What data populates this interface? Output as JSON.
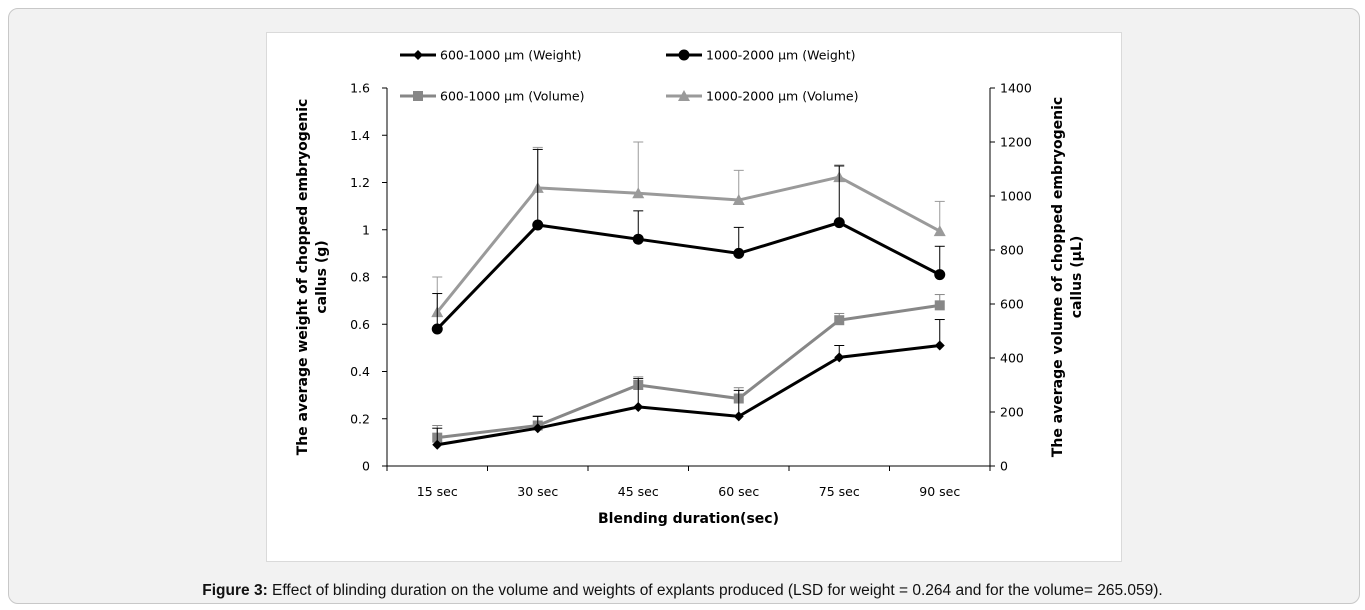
{
  "caption": {
    "label": "Figure 3:",
    "text": " Effect of blinding duration on the volume and weights of explants produced (LSD for weight = 0.264 and for the volume= 265.059)."
  },
  "chart_data": {
    "type": "line",
    "xlabel": "Blending duration(sec)",
    "ylabel_left": "The average weight of chopped embryogenic callus (g)",
    "ylabel_left_lines": [
      "The average weight of chopped embryogenic",
      "callus (g)"
    ],
    "ylabel_right": "The average volume of chopped embryogenic callus (µL)",
    "ylabel_right_lines": [
      "The average volume of chopped embryogenic",
      "callus (µL)"
    ],
    "categories": [
      "15 sec",
      "30 sec",
      "45 sec",
      "60 sec",
      "75 sec",
      "90 sec"
    ],
    "ylim_left": [
      0,
      1.6
    ],
    "yticks_left": [
      0,
      0.2,
      0.4,
      0.6,
      0.8,
      1,
      1.2,
      1.4,
      1.6
    ],
    "ytick_labels_left": [
      "0",
      "0.2",
      "0.4",
      "0.6",
      "0.8",
      "1",
      "1.2",
      "1.4",
      "1.6"
    ],
    "ylim_right": [
      0,
      1400
    ],
    "yticks_right": [
      0,
      200,
      400,
      600,
      800,
      1000,
      1200,
      1400
    ],
    "ytick_labels_right": [
      "0",
      "200",
      "400",
      "600",
      "800",
      "1000",
      "1200",
      "1400"
    ],
    "grid": false,
    "legend_position": "top",
    "series": [
      {
        "name": "600-1000 µm (Weight)",
        "axis": "left",
        "marker": "diamond",
        "color": "#000000",
        "values": [
          0.09,
          0.16,
          0.25,
          0.21,
          0.46,
          0.51
        ],
        "errors": [
          0.07,
          0.05,
          0.12,
          0.11,
          0.05,
          0.11
        ]
      },
      {
        "name": "1000-2000 µm  (Weight)",
        "axis": "left",
        "marker": "circle",
        "color": "#000000",
        "values": [
          0.58,
          1.02,
          0.96,
          0.9,
          1.03,
          0.81
        ],
        "errors": [
          0.15,
          0.32,
          0.12,
          0.11,
          0.24,
          0.12
        ]
      },
      {
        "name": "600-1000 µm (Volume)",
        "axis": "right",
        "marker": "square",
        "color": "#878787",
        "values": [
          105,
          150,
          300,
          250,
          540,
          595
        ],
        "errors": [
          45,
          35,
          30,
          40,
          25,
          40
        ]
      },
      {
        "name": "1000-2000 µm (Volume)",
        "axis": "right",
        "marker": "triangle",
        "color": "#9a9a9a",
        "values": [
          570,
          1030,
          1010,
          985,
          1070,
          870
        ],
        "errors": [
          130,
          150,
          190,
          110,
          45,
          110
        ]
      }
    ]
  }
}
